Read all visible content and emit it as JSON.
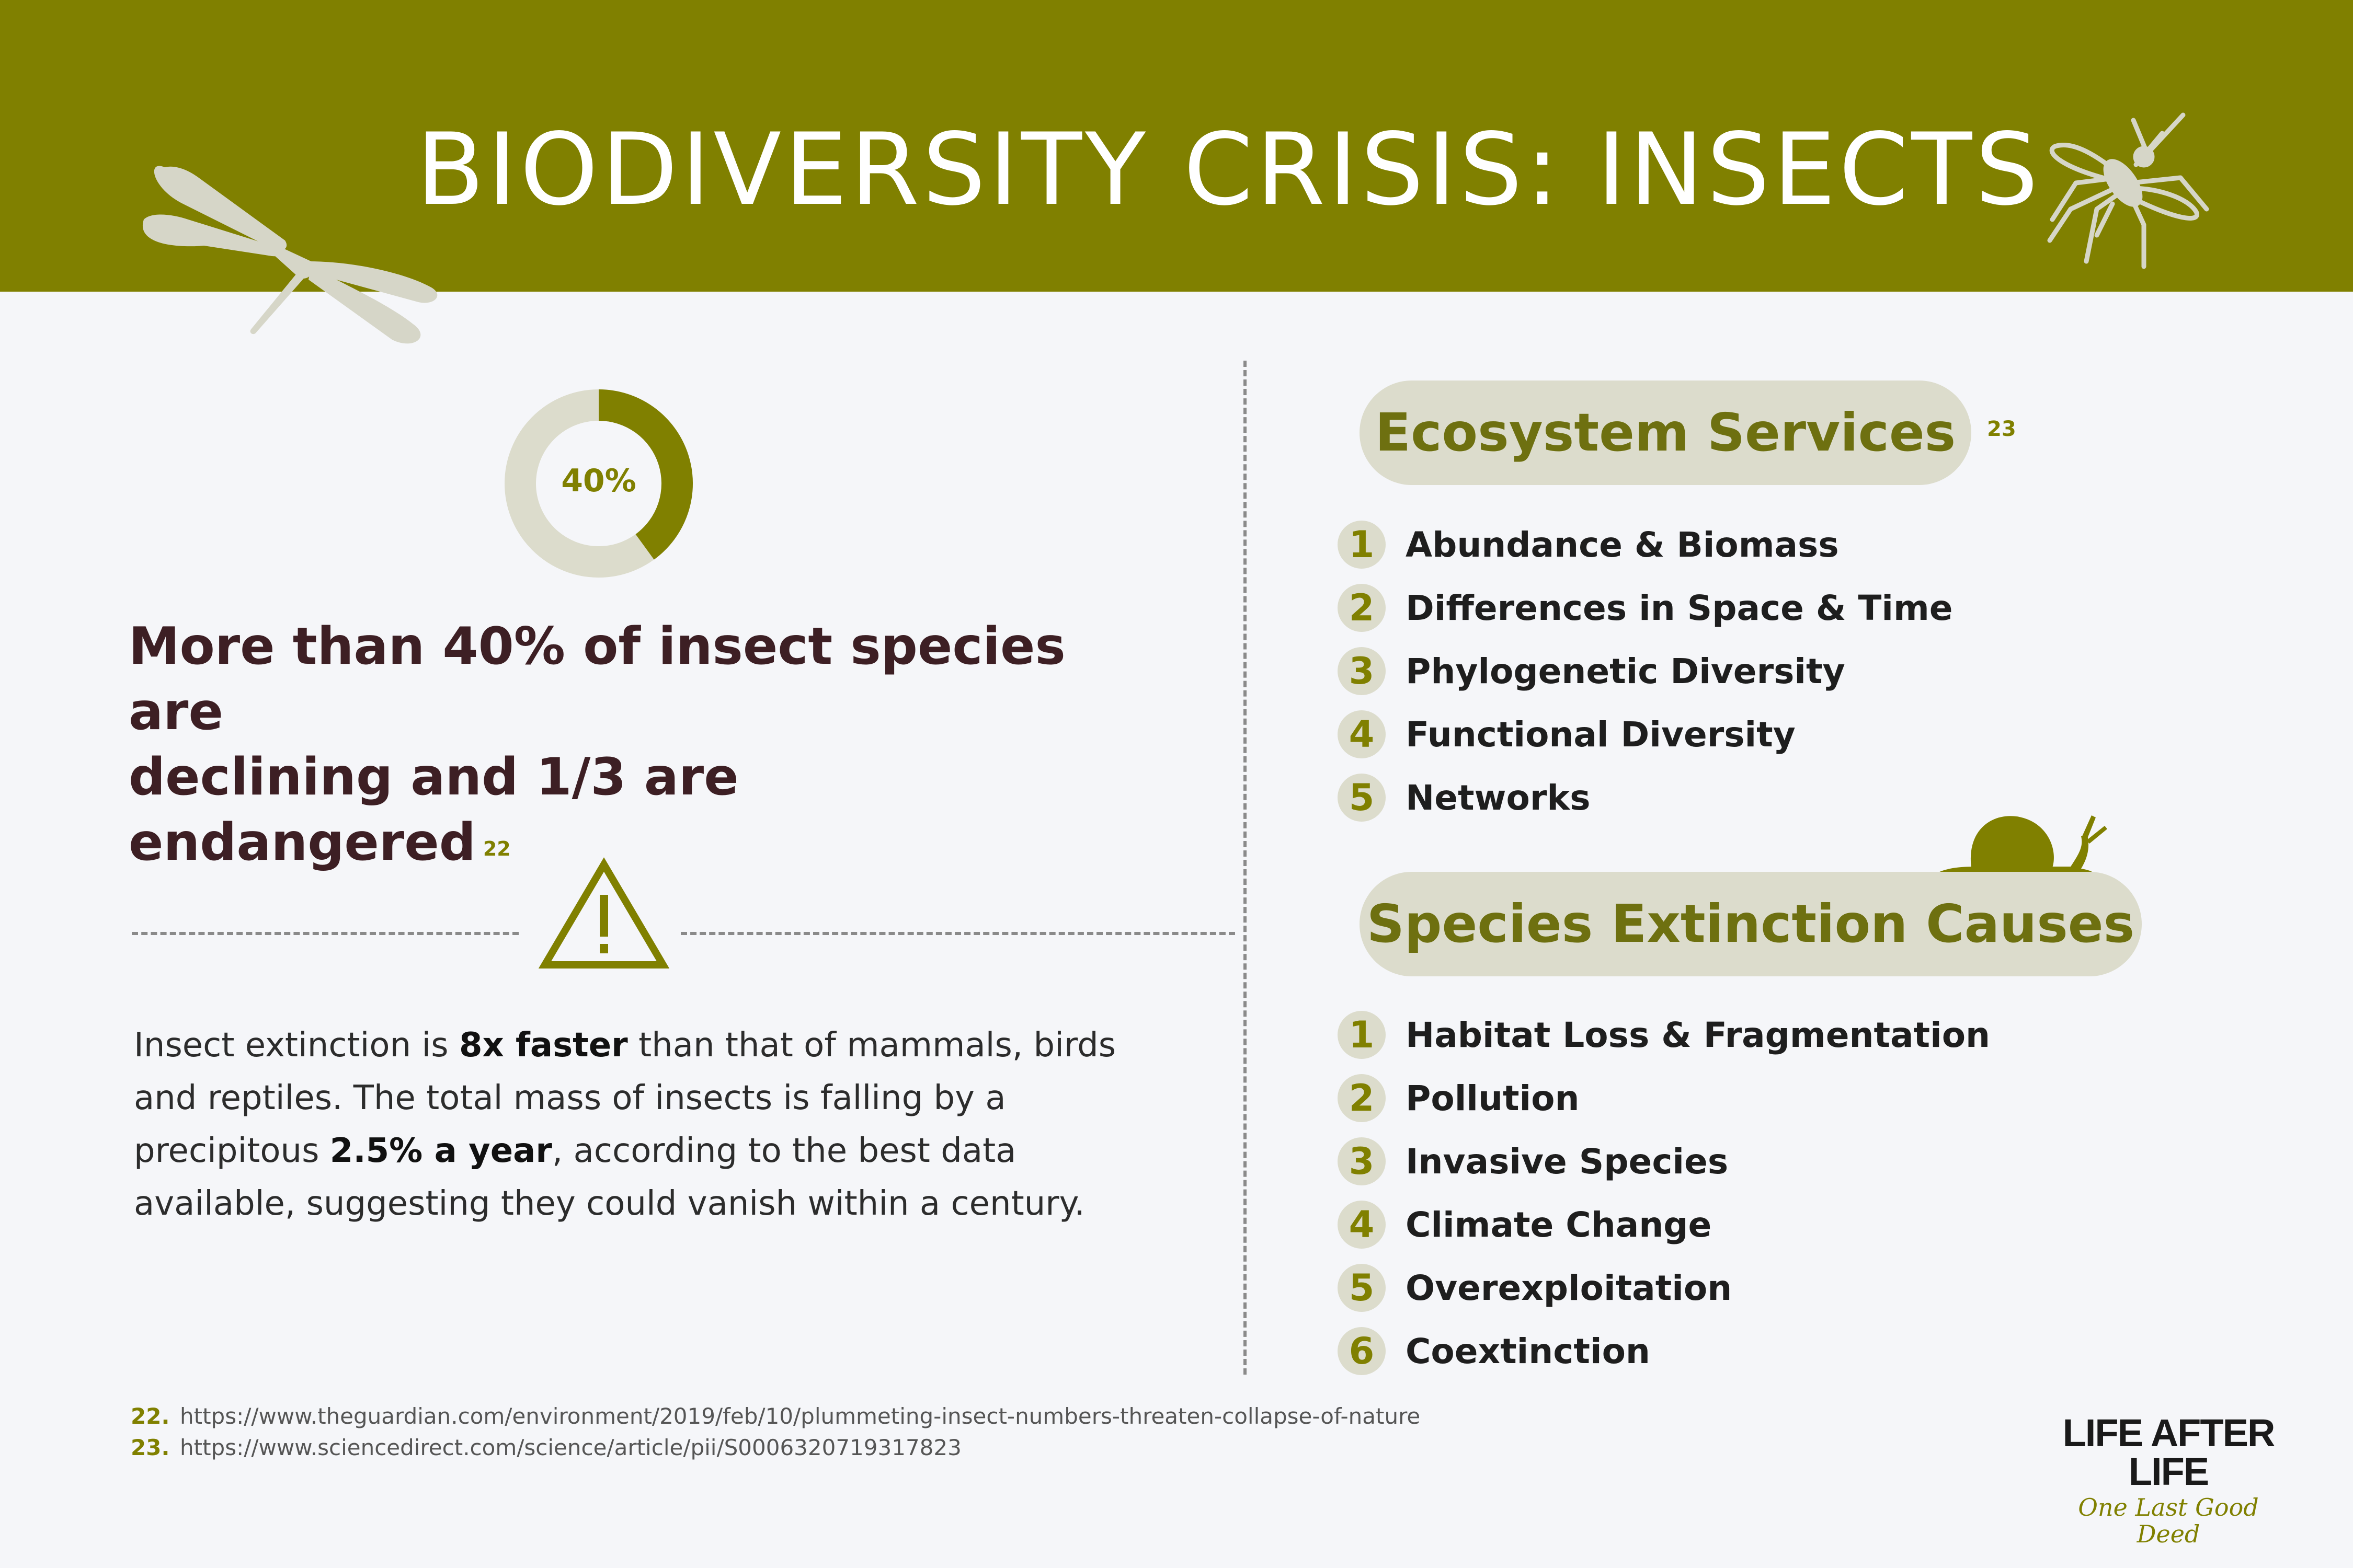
{
  "header": {
    "title": "BIODIVERSITY CRISIS: INSECTS"
  },
  "stat": {
    "percent_label": "40%",
    "percent_value": 40,
    "headline_line1": "More than 40% of insect species are",
    "headline_line2": "declining and 1/3 are endangered",
    "headline_ref": "22"
  },
  "paragraph": {
    "part1": "Insect extinction is ",
    "bold1": "8x faster",
    "part2": " than that of mammals, birds and reptiles. The total mass of insects is falling by a precipitous ",
    "bold2": "2.5% a year",
    "part3": ", according to the best data available, suggesting they could vanish within a century."
  },
  "ecosystem": {
    "title": "Ecosystem Services",
    "ref": "23",
    "items": [
      {
        "num": "1",
        "label": "Abundance & Biomass"
      },
      {
        "num": "2",
        "label": "Differences in Space & Time"
      },
      {
        "num": "3",
        "label": "Phylogenetic Diversity"
      },
      {
        "num": "4",
        "label": "Functional Diversity"
      },
      {
        "num": "5",
        "label": "Networks"
      }
    ]
  },
  "extinction": {
    "title": "Species Extinction Causes",
    "items": [
      {
        "num": "1",
        "label": "Habitat Loss & Fragmentation"
      },
      {
        "num": "2",
        "label": "Pollution"
      },
      {
        "num": "3",
        "label": "Invasive Species"
      },
      {
        "num": "4",
        "label": "Climate Change"
      },
      {
        "num": "5",
        "label": "Overexploitation"
      },
      {
        "num": "6",
        "label": "Coextinction"
      }
    ]
  },
  "footnotes": [
    {
      "num": "22.",
      "url": "https://www.theguardian.com/environment/2019/feb/10/plummeting-insect-numbers-threaten-collapse-of-nature"
    },
    {
      "num": "23.",
      "url": "https://www.sciencedirect.com/science/article/pii/S0006320719317823"
    }
  ],
  "brand": {
    "name": "LIFE AFTER LIFE",
    "tagline": "One Last Good Deed"
  },
  "colors": {
    "accent": "#808000",
    "pill": "#dcdccc",
    "headline": "#3d1f24",
    "background": "#f5f6f9",
    "decor": "#d6d6c8"
  },
  "icons": [
    "dragonfly-icon",
    "mosquito-icon",
    "warning-icon",
    "snail-icon"
  ]
}
